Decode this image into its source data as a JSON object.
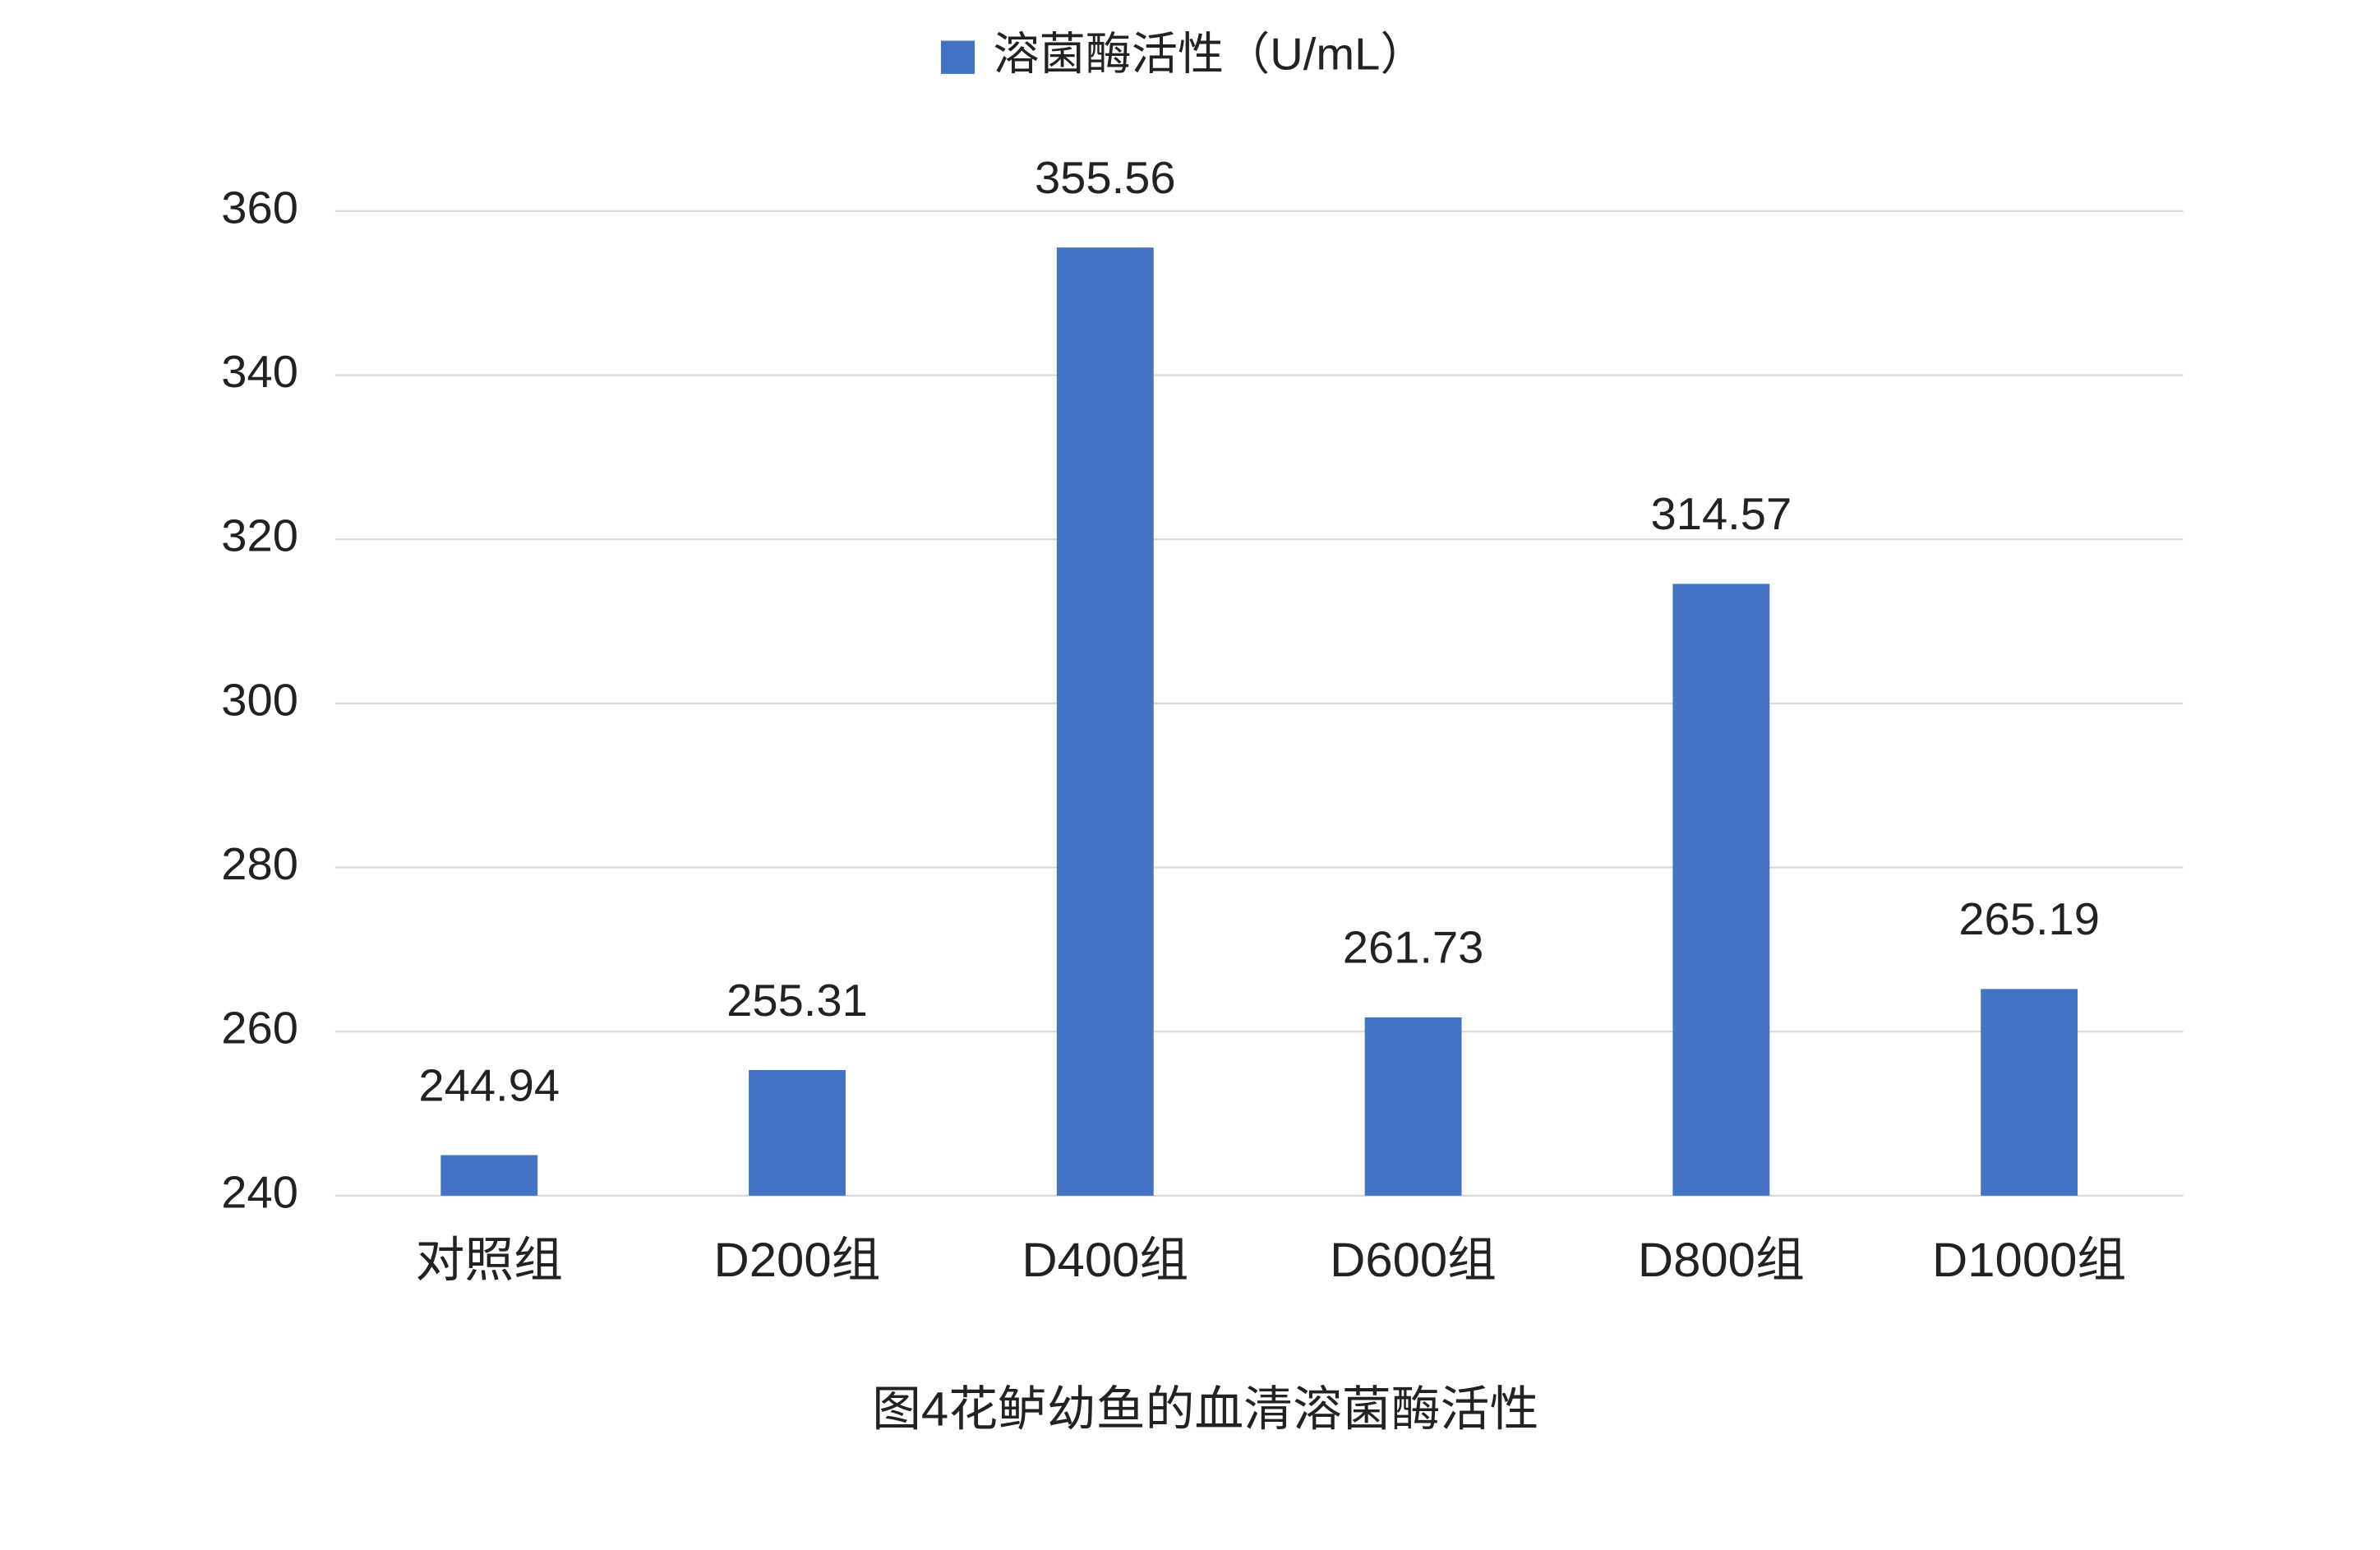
{
  "chart_data": {
    "type": "bar",
    "title": "图4花鲈幼鱼的血清溶菌酶活性",
    "categories": [
      "对照组",
      "D200组",
      "D400组",
      "D600组",
      "D800组",
      "D1000组"
    ],
    "series": [
      {
        "name": "溶菌酶活性（U/mL）",
        "color": "#4472c4",
        "values": [
          244.94,
          255.31,
          355.56,
          261.73,
          314.57,
          265.19
        ]
      }
    ],
    "ylim": [
      240,
      360
    ],
    "yticks": [
      240,
      260,
      280,
      300,
      320,
      340,
      360
    ],
    "grid": true,
    "legend": "top"
  }
}
